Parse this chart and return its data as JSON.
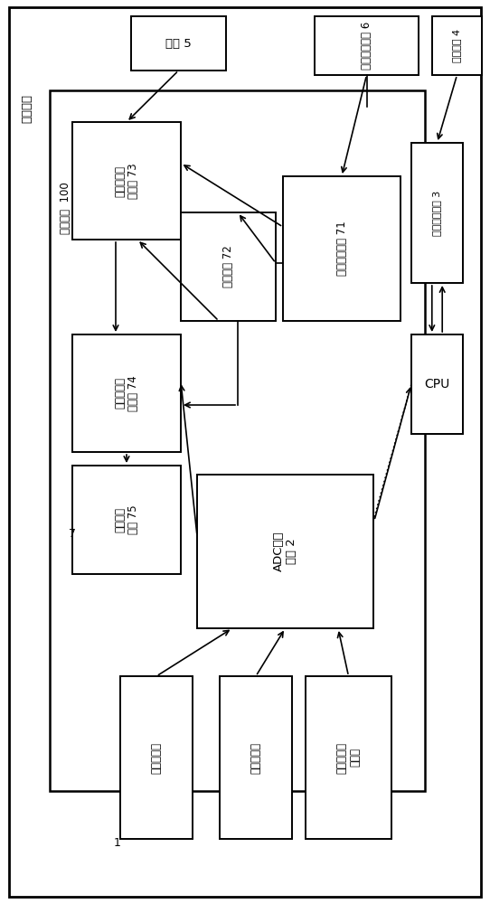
{
  "bg_color": "#ffffff",
  "fig_w": 5.42,
  "fig_h": 10.0,
  "chip_package_label": "芯片封装",
  "chip_silicon_label": "芯片硒片  100",
  "module7_label": "7",
  "battery_label": "电池 5",
  "wireless_label": "无线充电线圈 6",
  "bluetooth_ant_label": "蓝牙天线 4",
  "bluetooth_ctrl_label": "蓝牙控制电路 3",
  "cpu_label": "CPU",
  "ch1_label": "第一通路选\n择单元 73",
  "ch2_label": "第二通路选\n择单元 74",
  "power_label": "供电网络\n单元 75",
  "voltage_label": "稳压电路 72",
  "charge_label": "充电检测单元 71",
  "adc_label": "ADC转换\n单元 2",
  "sensor_group_label": "1",
  "sensor1_label": "温度传感器",
  "sensor2_label": "酸笿传感器",
  "sensor3_label": "各种病原菌\n传感器"
}
